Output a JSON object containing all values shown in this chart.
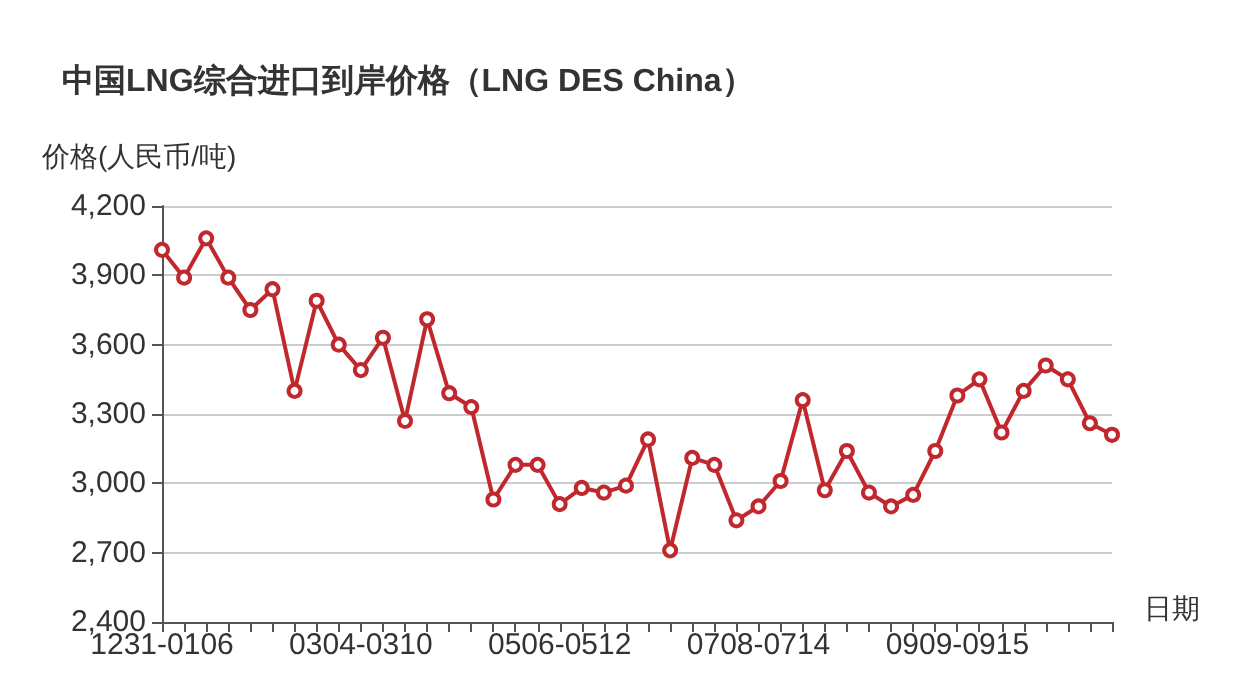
{
  "chart_data": {
    "type": "line",
    "title": "中国LNG综合进口到岸价格（LNG DES China）",
    "xlabel": "日期",
    "ylabel": "价格(人民币/吨)",
    "categories": [
      "1231-0106",
      null,
      null,
      null,
      null,
      null,
      null,
      null,
      null,
      "0304-0310",
      null,
      null,
      null,
      null,
      null,
      null,
      null,
      null,
      "0506-0512",
      null,
      null,
      null,
      null,
      null,
      null,
      null,
      null,
      "0708-0714",
      null,
      null,
      null,
      null,
      null,
      null,
      null,
      null,
      "0909-0915",
      null,
      null,
      null,
      null,
      null,
      null,
      null
    ],
    "series": [
      {
        "color": "#c0282d",
        "values": [
          4010,
          3890,
          4060,
          3890,
          3750,
          3840,
          3400,
          3790,
          3600,
          3490,
          3630,
          3270,
          3710,
          3390,
          3330,
          2930,
          3080,
          3080,
          2910,
          2980,
          2960,
          2990,
          3190,
          2710,
          3110,
          3080,
          2840,
          2900,
          3010,
          3360,
          2970,
          3140,
          2960,
          2900,
          2950,
          3140,
          3380,
          3450,
          3220,
          3400,
          3510,
          3450,
          3260,
          3210
        ]
      }
    ],
    "ylim": [
      2400,
      4200
    ],
    "yticks": [
      {
        "value": 2400,
        "label": "2,400"
      },
      {
        "value": 2700,
        "label": "2,700"
      },
      {
        "value": 3000,
        "label": "3,000"
      },
      {
        "value": 3300,
        "label": "3,300"
      },
      {
        "value": 3600,
        "label": "3,600"
      },
      {
        "value": 3900,
        "label": "3,900"
      },
      {
        "value": 4200,
        "label": "4,200"
      }
    ],
    "grid": "y",
    "marker": "circle",
    "line_style": "solid"
  }
}
